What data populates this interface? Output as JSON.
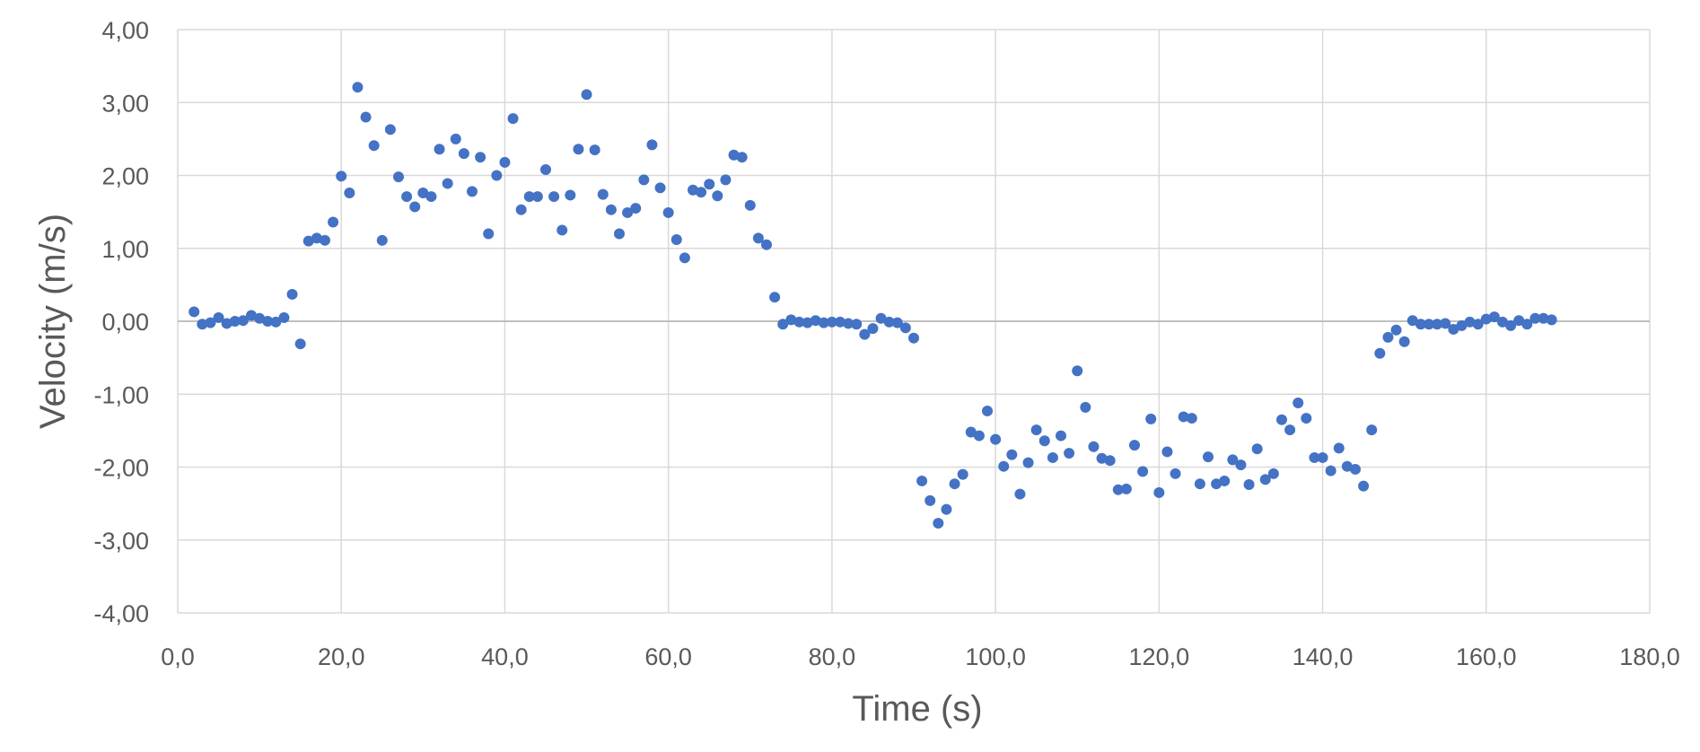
{
  "chart_data": {
    "type": "scatter",
    "title": "",
    "xlabel": "Time (s)",
    "ylabel": "Velocity (m/s)",
    "xlim": [
      0,
      180
    ],
    "ylim": [
      -4,
      4
    ],
    "x_ticks": [
      "0,0",
      "20,0",
      "40,0",
      "60,0",
      "80,0",
      "100,0",
      "120,0",
      "140,0",
      "160,0",
      "180,0"
    ],
    "y_ticks": [
      "4,00",
      "3,00",
      "2,00",
      "1,00",
      "0,00",
      "-1,00",
      "-2,00",
      "-3,00",
      "-4,00"
    ],
    "grid": true,
    "legend": "none",
    "marker_color": "#4472c4",
    "series": [
      {
        "points": [
          [
            2,
            0.13
          ],
          [
            3,
            -0.04
          ],
          [
            4,
            -0.02
          ],
          [
            5,
            0.05
          ],
          [
            6,
            -0.03
          ],
          [
            7,
            0.0
          ],
          [
            8,
            0.01
          ],
          [
            9,
            0.08
          ],
          [
            10,
            0.04
          ],
          [
            11,
            0.0
          ],
          [
            12,
            -0.01
          ],
          [
            13,
            0.05
          ],
          [
            14,
            0.37
          ],
          [
            15,
            -0.31
          ],
          [
            16,
            1.1
          ],
          [
            17,
            1.14
          ],
          [
            18,
            1.11
          ],
          [
            19,
            1.36
          ],
          [
            20,
            1.99
          ],
          [
            21,
            1.76
          ],
          [
            22,
            3.21
          ],
          [
            23,
            2.8
          ],
          [
            24,
            2.41
          ],
          [
            25,
            1.11
          ],
          [
            26,
            2.63
          ],
          [
            27,
            1.98
          ],
          [
            28,
            1.71
          ],
          [
            29,
            1.57
          ],
          [
            30,
            1.76
          ],
          [
            31,
            1.71
          ],
          [
            32,
            2.36
          ],
          [
            33,
            1.89
          ],
          [
            34,
            2.5
          ],
          [
            35,
            2.3
          ],
          [
            36,
            1.78
          ],
          [
            37,
            2.25
          ],
          [
            38,
            1.2
          ],
          [
            39,
            2.0
          ],
          [
            40,
            2.18
          ],
          [
            41,
            2.78
          ],
          [
            42,
            1.53
          ],
          [
            43,
            1.71
          ],
          [
            44,
            1.71
          ],
          [
            45,
            2.08
          ],
          [
            46,
            1.71
          ],
          [
            47,
            1.25
          ],
          [
            48,
            1.73
          ],
          [
            49,
            2.36
          ],
          [
            50,
            3.11
          ],
          [
            51,
            2.35
          ],
          [
            52,
            1.74
          ],
          [
            53,
            1.53
          ],
          [
            54,
            1.2
          ],
          [
            55,
            1.49
          ],
          [
            56,
            1.55
          ],
          [
            57,
            1.94
          ],
          [
            58,
            2.42
          ],
          [
            59,
            1.83
          ],
          [
            60,
            1.49
          ],
          [
            61,
            1.12
          ],
          [
            62,
            0.87
          ],
          [
            63,
            1.8
          ],
          [
            64,
            1.77
          ],
          [
            65,
            1.88
          ],
          [
            66,
            1.72
          ],
          [
            67,
            1.94
          ],
          [
            68,
            2.28
          ],
          [
            69,
            2.25
          ],
          [
            70,
            1.59
          ],
          [
            71,
            1.14
          ],
          [
            72,
            1.05
          ],
          [
            73,
            0.33
          ],
          [
            74,
            -0.04
          ],
          [
            75,
            0.02
          ],
          [
            76,
            -0.01
          ],
          [
            77,
            -0.02
          ],
          [
            78,
            0.01
          ],
          [
            79,
            -0.02
          ],
          [
            80,
            -0.01
          ],
          [
            81,
            -0.01
          ],
          [
            82,
            -0.03
          ],
          [
            83,
            -0.04
          ],
          [
            84,
            -0.18
          ],
          [
            85,
            -0.1
          ],
          [
            86,
            0.04
          ],
          [
            87,
            -0.01
          ],
          [
            88,
            -0.02
          ],
          [
            89,
            -0.09
          ],
          [
            90,
            -0.23
          ],
          [
            91,
            -2.19
          ],
          [
            92,
            -2.46
          ],
          [
            93,
            -2.77
          ],
          [
            94,
            -2.58
          ],
          [
            95,
            -2.23
          ],
          [
            96,
            -2.1
          ],
          [
            97,
            -1.52
          ],
          [
            98,
            -1.57
          ],
          [
            99,
            -1.23
          ],
          [
            100,
            -1.62
          ],
          [
            101,
            -1.99
          ],
          [
            102,
            -1.83
          ],
          [
            103,
            -2.37
          ],
          [
            104,
            -1.94
          ],
          [
            105,
            -1.49
          ],
          [
            106,
            -1.64
          ],
          [
            107,
            -1.87
          ],
          [
            108,
            -1.57
          ],
          [
            109,
            -1.81
          ],
          [
            110,
            -0.68
          ],
          [
            111,
            -1.18
          ],
          [
            112,
            -1.72
          ],
          [
            113,
            -1.88
          ],
          [
            114,
            -1.91
          ],
          [
            115,
            -2.31
          ],
          [
            116,
            -2.3
          ],
          [
            117,
            -1.7
          ],
          [
            118,
            -2.06
          ],
          [
            119,
            -1.34
          ],
          [
            120,
            -2.35
          ],
          [
            121,
            -1.79
          ],
          [
            122,
            -2.09
          ],
          [
            123,
            -1.31
          ],
          [
            124,
            -1.33
          ],
          [
            125,
            -2.23
          ],
          [
            126,
            -1.86
          ],
          [
            127,
            -2.23
          ],
          [
            128,
            -2.19
          ],
          [
            129,
            -1.9
          ],
          [
            130,
            -1.97
          ],
          [
            131,
            -2.24
          ],
          [
            132,
            -1.75
          ],
          [
            133,
            -2.17
          ],
          [
            134,
            -2.09
          ],
          [
            135,
            -1.35
          ],
          [
            136,
            -1.49
          ],
          [
            137,
            -1.12
          ],
          [
            138,
            -1.33
          ],
          [
            139,
            -1.87
          ],
          [
            140,
            -1.87
          ],
          [
            141,
            -2.05
          ],
          [
            142,
            -1.74
          ],
          [
            143,
            -1.99
          ],
          [
            144,
            -2.03
          ],
          [
            145,
            -2.26
          ],
          [
            146,
            -1.49
          ],
          [
            147,
            -0.44
          ],
          [
            148,
            -0.22
          ],
          [
            149,
            -0.12
          ],
          [
            150,
            -0.28
          ],
          [
            151,
            0.01
          ],
          [
            152,
            -0.04
          ],
          [
            153,
            -0.04
          ],
          [
            154,
            -0.04
          ],
          [
            155,
            -0.03
          ],
          [
            156,
            -0.11
          ],
          [
            157,
            -0.06
          ],
          [
            158,
            -0.01
          ],
          [
            159,
            -0.04
          ],
          [
            160,
            0.03
          ],
          [
            161,
            0.06
          ],
          [
            162,
            -0.01
          ],
          [
            163,
            -0.06
          ],
          [
            164,
            0.01
          ],
          [
            165,
            -0.04
          ],
          [
            166,
            0.04
          ],
          [
            167,
            0.04
          ],
          [
            168,
            0.02
          ]
        ]
      }
    ]
  }
}
